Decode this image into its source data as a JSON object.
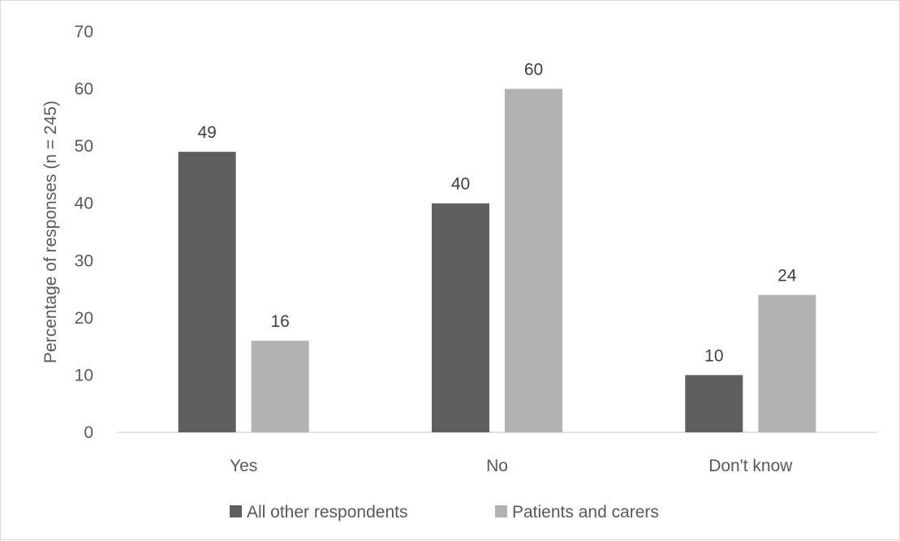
{
  "chart_data": {
    "type": "bar",
    "title": "",
    "xlabel": "",
    "ylabel": "Percentage of responses (n = 245)",
    "ylim": [
      0,
      70
    ],
    "yticks": [
      0,
      10,
      20,
      30,
      40,
      50,
      60,
      70
    ],
    "grid": false,
    "legend_position": "bottom",
    "categories": [
      "Yes",
      "No",
      "Don't know"
    ],
    "series": [
      {
        "name": "All other respondents",
        "values": [
          49,
          40,
          10
        ],
        "color": "#5f5f5f"
      },
      {
        "name": "Patients and carers",
        "values": [
          16,
          60,
          24
        ],
        "color": "#b2b2b2"
      }
    ],
    "data_labels": [
      [
        "49",
        "40",
        "10"
      ],
      [
        "16",
        "60",
        "24"
      ]
    ]
  }
}
